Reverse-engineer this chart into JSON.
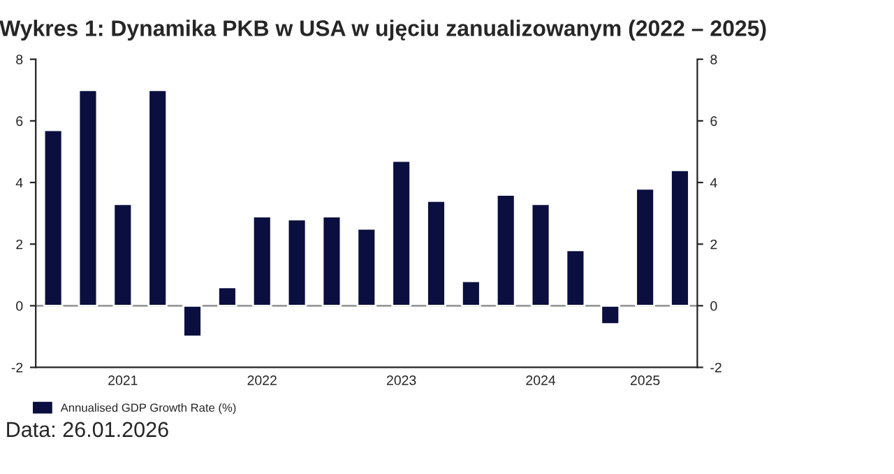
{
  "chart_data": {
    "type": "bar",
    "title": "Wykres 1: Dynamika PKB w USA w ujęciu zanualizowanym (2022 – 2025)",
    "categories": [
      null,
      null,
      "2021",
      null,
      null,
      null,
      "2022",
      null,
      null,
      null,
      "2023",
      null,
      null,
      null,
      "2024",
      null,
      null,
      "2025",
      null
    ],
    "series": [
      {
        "name": "Annualised GDP Growth Rate (%)",
        "color": "#0b0f3f",
        "values": [
          5.7,
          7.0,
          3.3,
          7.0,
          -1.0,
          0.6,
          2.9,
          2.8,
          2.9,
          2.5,
          4.7,
          3.4,
          0.8,
          3.6,
          3.3,
          1.8,
          -0.6,
          3.8,
          4.4
        ]
      }
    ],
    "ylim": [
      -2,
      8
    ],
    "yticks": [
      -2,
      0,
      2,
      4,
      6,
      8
    ],
    "y2lim": [
      -2,
      8
    ],
    "y2ticks": [
      -2,
      0,
      2,
      4,
      6,
      8
    ],
    "ref_lines": [
      {
        "axis": "y",
        "value": 0,
        "color": "#999999"
      }
    ],
    "legend": "bottom left",
    "grid": false,
    "annotations": [
      "Data: 26.01.2026"
    ]
  }
}
